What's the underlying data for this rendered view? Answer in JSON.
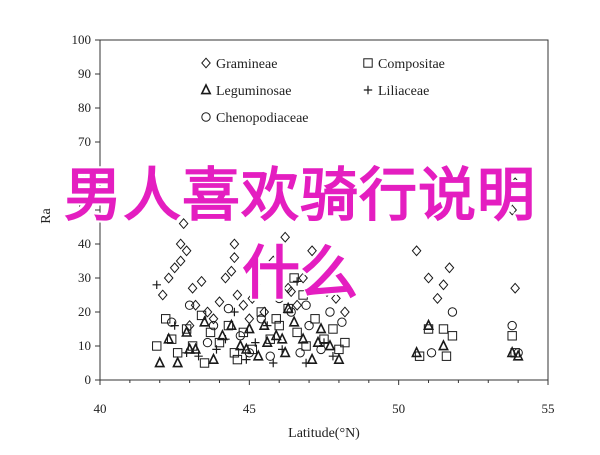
{
  "colors": {
    "marker": "#1a1a1a",
    "axis": "#333333",
    "overlay": "#e41ec0"
  },
  "overlay": {
    "line1": "男人喜欢骑行说明",
    "line2": "什么"
  },
  "chart_data": {
    "type": "scatter",
    "xlabel": "Latitude(°N)",
    "ylabel": "Ra",
    "xlim": [
      40,
      55
    ],
    "ylim": [
      0,
      100
    ],
    "xticks": [
      "40",
      "45",
      "50",
      "55"
    ],
    "yticks": [
      "0",
      "10",
      "20",
      "30",
      "40",
      "50",
      "60",
      "70",
      "80",
      "90",
      "100"
    ],
    "legend_position": "top-left",
    "series": [
      {
        "name": "Gramineae",
        "marker": "diamond",
        "points": [
          [
            42.1,
            25
          ],
          [
            42.3,
            30
          ],
          [
            42.5,
            33
          ],
          [
            42.7,
            35
          ],
          [
            42.9,
            38
          ],
          [
            43.1,
            27
          ],
          [
            43.2,
            22
          ],
          [
            43.4,
            29
          ],
          [
            43.6,
            20
          ],
          [
            43.8,
            18
          ],
          [
            44.0,
            23
          ],
          [
            44.2,
            30
          ],
          [
            44.4,
            32
          ],
          [
            44.5,
            40
          ],
          [
            44.6,
            25
          ],
          [
            44.8,
            22
          ],
          [
            45.0,
            18
          ],
          [
            45.2,
            28
          ],
          [
            45.5,
            20
          ],
          [
            45.8,
            35
          ],
          [
            46.0,
            25
          ],
          [
            46.2,
            42
          ],
          [
            46.4,
            26
          ],
          [
            46.6,
            22
          ],
          [
            46.8,
            30
          ],
          [
            47.1,
            38
          ],
          [
            47.3,
            28
          ],
          [
            47.6,
            26
          ],
          [
            47.9,
            24
          ],
          [
            48.2,
            20
          ],
          [
            42.8,
            46
          ],
          [
            43.0,
            16
          ],
          [
            45.1,
            24
          ],
          [
            46.3,
            27
          ],
          [
            50.6,
            38
          ],
          [
            51.0,
            30
          ],
          [
            51.3,
            24
          ],
          [
            51.5,
            28
          ],
          [
            51.7,
            33
          ],
          [
            53.9,
            27
          ],
          [
            53.8,
            50
          ],
          [
            53.9,
            58
          ],
          [
            42.7,
            40
          ],
          [
            44.5,
            36
          ],
          [
            45.3,
            33
          ]
        ]
      },
      {
        "name": "Compositae",
        "marker": "square",
        "points": [
          [
            41.9,
            10
          ],
          [
            42.2,
            18
          ],
          [
            42.4,
            12
          ],
          [
            42.6,
            8
          ],
          [
            42.9,
            15
          ],
          [
            43.1,
            10
          ],
          [
            43.4,
            19
          ],
          [
            43.7,
            14
          ],
          [
            44.0,
            11
          ],
          [
            44.3,
            16
          ],
          [
            44.5,
            8
          ],
          [
            44.8,
            14
          ],
          [
            45.1,
            9
          ],
          [
            45.4,
            20
          ],
          [
            45.7,
            12
          ],
          [
            46.0,
            16
          ],
          [
            46.3,
            21
          ],
          [
            46.6,
            14
          ],
          [
            46.9,
            10
          ],
          [
            47.2,
            18
          ],
          [
            47.5,
            12
          ],
          [
            47.8,
            15
          ],
          [
            48.0,
            9
          ],
          [
            48.2,
            11
          ],
          [
            46.5,
            30
          ],
          [
            51.0,
            15
          ],
          [
            51.5,
            15
          ],
          [
            51.8,
            13
          ],
          [
            50.7,
            7
          ],
          [
            51.6,
            7
          ],
          [
            53.8,
            13
          ],
          [
            53.9,
            8
          ],
          [
            43.5,
            5
          ],
          [
            44.6,
            6
          ],
          [
            45.9,
            18
          ],
          [
            46.8,
            25
          ]
        ]
      },
      {
        "name": "Leguminosae",
        "marker": "triangle",
        "points": [
          [
            42.0,
            5
          ],
          [
            42.3,
            12
          ],
          [
            42.6,
            5
          ],
          [
            42.9,
            14
          ],
          [
            43.2,
            9
          ],
          [
            43.5,
            17
          ],
          [
            43.8,
            6
          ],
          [
            44.1,
            13
          ],
          [
            44.4,
            16
          ],
          [
            44.7,
            10
          ],
          [
            45.0,
            15
          ],
          [
            45.3,
            7
          ],
          [
            45.6,
            11
          ],
          [
            45.9,
            13
          ],
          [
            46.2,
            8
          ],
          [
            46.5,
            17
          ],
          [
            46.8,
            12
          ],
          [
            47.1,
            6
          ],
          [
            47.4,
            15
          ],
          [
            47.7,
            10
          ],
          [
            48.0,
            6
          ],
          [
            43.0,
            9
          ],
          [
            44.9,
            9
          ],
          [
            46.1,
            12
          ],
          [
            47.3,
            11
          ],
          [
            50.6,
            8
          ],
          [
            51.0,
            16
          ],
          [
            51.5,
            10
          ],
          [
            53.8,
            8
          ],
          [
            54.0,
            7
          ],
          [
            45.5,
            16
          ],
          [
            46.3,
            21
          ]
        ]
      },
      {
        "name": "Liliaceae",
        "marker": "plus",
        "points": [
          [
            41.9,
            28
          ],
          [
            42.5,
            16
          ],
          [
            43.3,
            7
          ],
          [
            44.2,
            12
          ],
          [
            44.9,
            6
          ],
          [
            45.6,
            16
          ],
          [
            46.1,
            9
          ],
          [
            46.9,
            5
          ],
          [
            47.5,
            11
          ],
          [
            46.6,
            29
          ],
          [
            44.5,
            20
          ],
          [
            45.2,
            11
          ],
          [
            42.9,
            8
          ],
          [
            43.9,
            9
          ],
          [
            47.8,
            7
          ],
          [
            45.8,
            5
          ]
        ]
      },
      {
        "name": "Chenopodiaceae",
        "marker": "circle",
        "points": [
          [
            42.4,
            17
          ],
          [
            43.0,
            22
          ],
          [
            43.6,
            11
          ],
          [
            44.3,
            21
          ],
          [
            44.7,
            13
          ],
          [
            45.0,
            8
          ],
          [
            45.4,
            18
          ],
          [
            46.0,
            24
          ],
          [
            46.4,
            20
          ],
          [
            46.7,
            8
          ],
          [
            47.0,
            16
          ],
          [
            47.4,
            9
          ],
          [
            47.7,
            20
          ],
          [
            48.1,
            17
          ],
          [
            43.8,
            16
          ],
          [
            45.7,
            7
          ],
          [
            51.1,
            8
          ],
          [
            51.8,
            20
          ],
          [
            53.8,
            16
          ],
          [
            54.0,
            8
          ],
          [
            46.9,
            22
          ]
        ]
      }
    ]
  }
}
